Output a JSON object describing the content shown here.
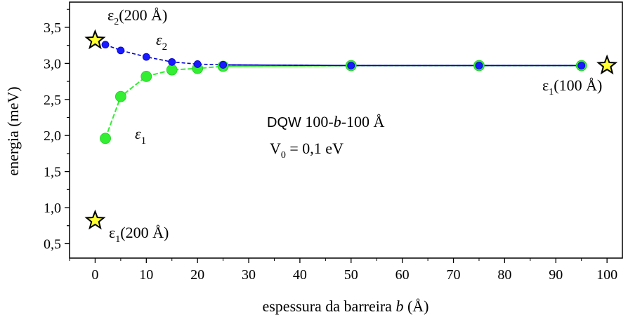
{
  "chart_data": {
    "type": "line",
    "xlabel": "espessura da barreira",
    "xlabel_var": "b",
    "xlabel_unit": "(Å)",
    "ylabel": "energia (meV)",
    "xlim": [
      -5,
      103
    ],
    "ylim": [
      0.3,
      3.85
    ],
    "x_ticks": [
      0,
      10,
      20,
      30,
      40,
      50,
      60,
      70,
      80,
      90,
      100
    ],
    "x_tick_labels": [
      "0",
      "10",
      "20",
      "30",
      "40",
      "50",
      "60",
      "70",
      "80",
      "90",
      "100"
    ],
    "y_ticks": [
      0.5,
      1.0,
      1.5,
      2.0,
      2.5,
      3.0,
      3.5
    ],
    "y_tick_labels": [
      "0,5",
      "1,0",
      "1,5",
      "2,0",
      "2,5",
      "3,0",
      "3,5"
    ],
    "grid": false,
    "legend": "none",
    "series": [
      {
        "id": "e2",
        "color": "#1a1aff",
        "line_color": "#0000cc",
        "x": [
          2,
          5,
          10,
          15,
          20,
          25,
          50,
          75,
          95
        ],
        "y": [
          3.26,
          3.18,
          3.09,
          3.02,
          2.99,
          2.98,
          2.97,
          2.97,
          2.97
        ]
      },
      {
        "id": "e1",
        "color": "#33ee33",
        "line_color": "#33ee33",
        "x": [
          2,
          5,
          10,
          15,
          20,
          25,
          50,
          75,
          95
        ],
        "y": [
          1.96,
          2.54,
          2.82,
          2.91,
          2.93,
          2.96,
          2.97,
          2.97,
          2.97
        ]
      }
    ],
    "reference_points": [
      {
        "id": "e2-200",
        "x": 0,
        "y": 3.32,
        "label_sym": "ε",
        "label_sub": "2",
        "label_rest": "(200 Å)"
      },
      {
        "id": "e1-200",
        "x": 0,
        "y": 0.82,
        "label_sym": "ε",
        "label_sub": "1",
        "label_rest": "(200 Å)"
      },
      {
        "id": "e1-100",
        "x": 100,
        "y": 2.97,
        "label_sym": "ε",
        "label_sub": "1",
        "label_rest": "(100 Å)"
      }
    ],
    "curve_labels": [
      {
        "id": "e2",
        "sym": "ε",
        "sub": "2"
      },
      {
        "id": "e1",
        "sym": "ε",
        "sub": "1"
      }
    ],
    "annotations": {
      "line1_prefix": "DQW",
      "line1_a": "100-",
      "line1_b": "b",
      "line1_c": "-100 Å",
      "line2_a": "V",
      "line2_sub": "0",
      "line2_b": " = 0,1 eV"
    },
    "star_fill": "#ffff33"
  }
}
